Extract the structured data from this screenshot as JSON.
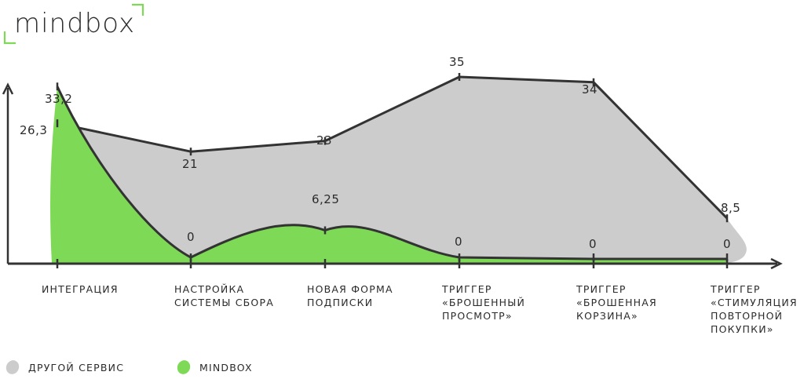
{
  "brand": {
    "logo_text": "mindbox",
    "accent": "#7ed957"
  },
  "chart_data": {
    "type": "area",
    "categories": [
      "ИНТЕГРАЦИЯ",
      "НАСТРОЙКА\nСИСТЕМЫ СБОРА",
      "НОВАЯ ФОРМА\nПОДПИСКИ",
      "ТРИГГЕР\n«БРОШЕННЫЙ\nПРОСМОТР»",
      "ТРИГГЕР\n«БРОШЕННАЯ\nКОРЗИНА»",
      "ТРИГГЕР\n«СТИМУЛЯЦИЯ\nПОВТОРНОЙ\nПОКУПКИ»"
    ],
    "series": [
      {
        "name": "ДРУГОЙ СЕРВИС",
        "color": "#cccccc",
        "values": [
          26.3,
          21,
          23,
          35,
          34,
          8.5
        ],
        "labels": [
          "26,3",
          "21",
          "23",
          "35",
          "34",
          "8,5"
        ]
      },
      {
        "name": "MINDBOX",
        "color": "#7ed957",
        "values": [
          33.2,
          0,
          6.25,
          0,
          0,
          0
        ],
        "labels": [
          "33,2",
          "0",
          "6,25",
          "0",
          "0",
          "0"
        ]
      }
    ],
    "ylim": [
      0,
      35
    ],
    "grid": false,
    "legend": "bottom-left"
  }
}
